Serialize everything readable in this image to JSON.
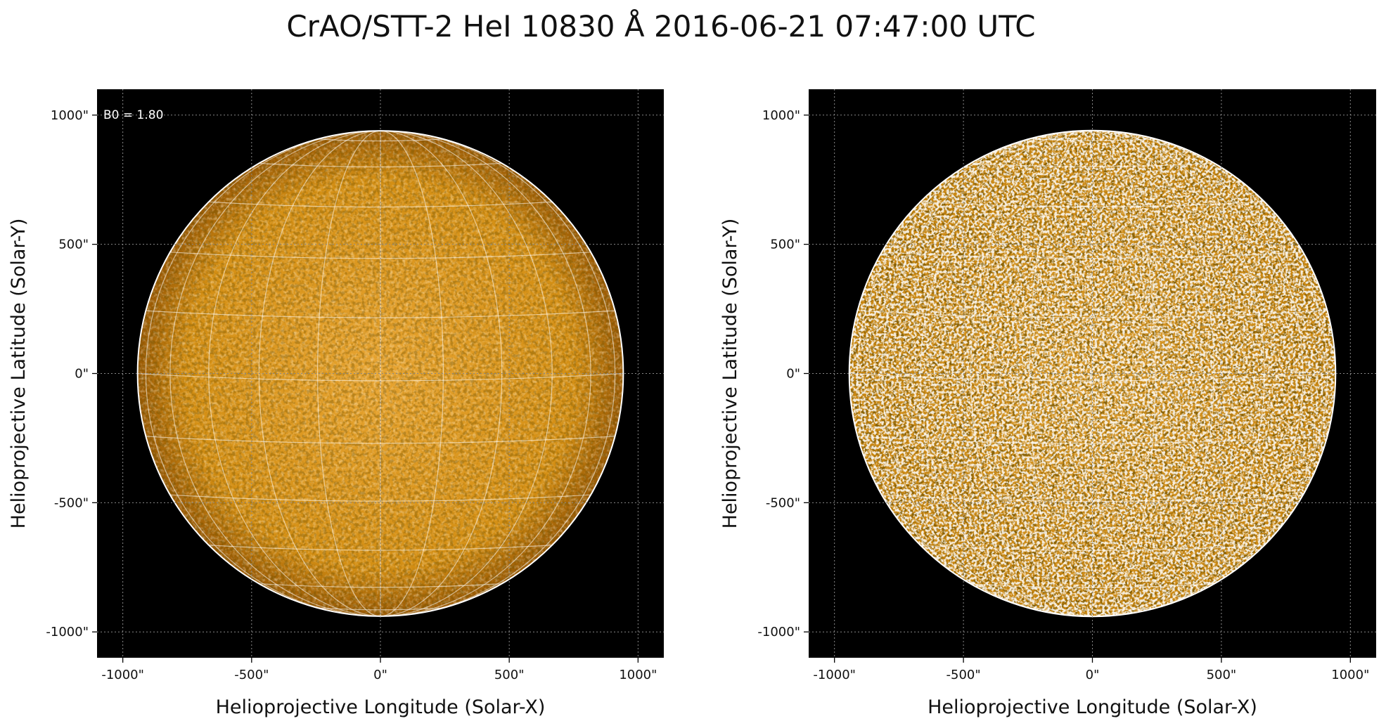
{
  "title": "CrAO/STT-2 HeI 10830 Å 2016-06-21 07:47:00 UTC",
  "chart_data": [
    {
      "type": "image",
      "xlabel": "Helioprojective Longitude (Solar-X)",
      "ylabel": "Helioprojective Latitude (Solar-Y)",
      "xlim": [
        -1100,
        1100
      ],
      "ylim": [
        -1100,
        1100
      ],
      "xticks": [
        {
          "value": -1000,
          "label": "-1000\""
        },
        {
          "value": -500,
          "label": "-500\""
        },
        {
          "value": 0,
          "label": "0\""
        },
        {
          "value": 500,
          "label": "500\""
        },
        {
          "value": 1000,
          "label": "1000\""
        }
      ],
      "yticks": [
        {
          "value": -1000,
          "label": "-1000\""
        },
        {
          "value": -500,
          "label": "-500\""
        },
        {
          "value": 0,
          "label": "0\""
        },
        {
          "value": 500,
          "label": "500\""
        },
        {
          "value": 1000,
          "label": "1000\""
        }
      ],
      "grid": true,
      "annotation": "B0 = 1.80"
    },
    {
      "type": "image",
      "xlabel": "Helioprojective Longitude (Solar-X)",
      "ylabel": "Helioprojective Latitude (Solar-Y)",
      "xlim": [
        -1100,
        1100
      ],
      "ylim": [
        -1100,
        1100
      ],
      "xticks": [
        {
          "value": -1000,
          "label": "-1000\""
        },
        {
          "value": -500,
          "label": "-500\""
        },
        {
          "value": 0,
          "label": "0\""
        },
        {
          "value": 500,
          "label": "500\""
        },
        {
          "value": 1000,
          "label": "1000\""
        }
      ],
      "yticks": [
        {
          "value": -1000,
          "label": "-1000\""
        },
        {
          "value": -500,
          "label": "-500\""
        },
        {
          "value": 0,
          "label": "0\""
        },
        {
          "value": 500,
          "label": "500\""
        },
        {
          "value": 1000,
          "label": "1000\""
        }
      ],
      "grid": true
    }
  ]
}
